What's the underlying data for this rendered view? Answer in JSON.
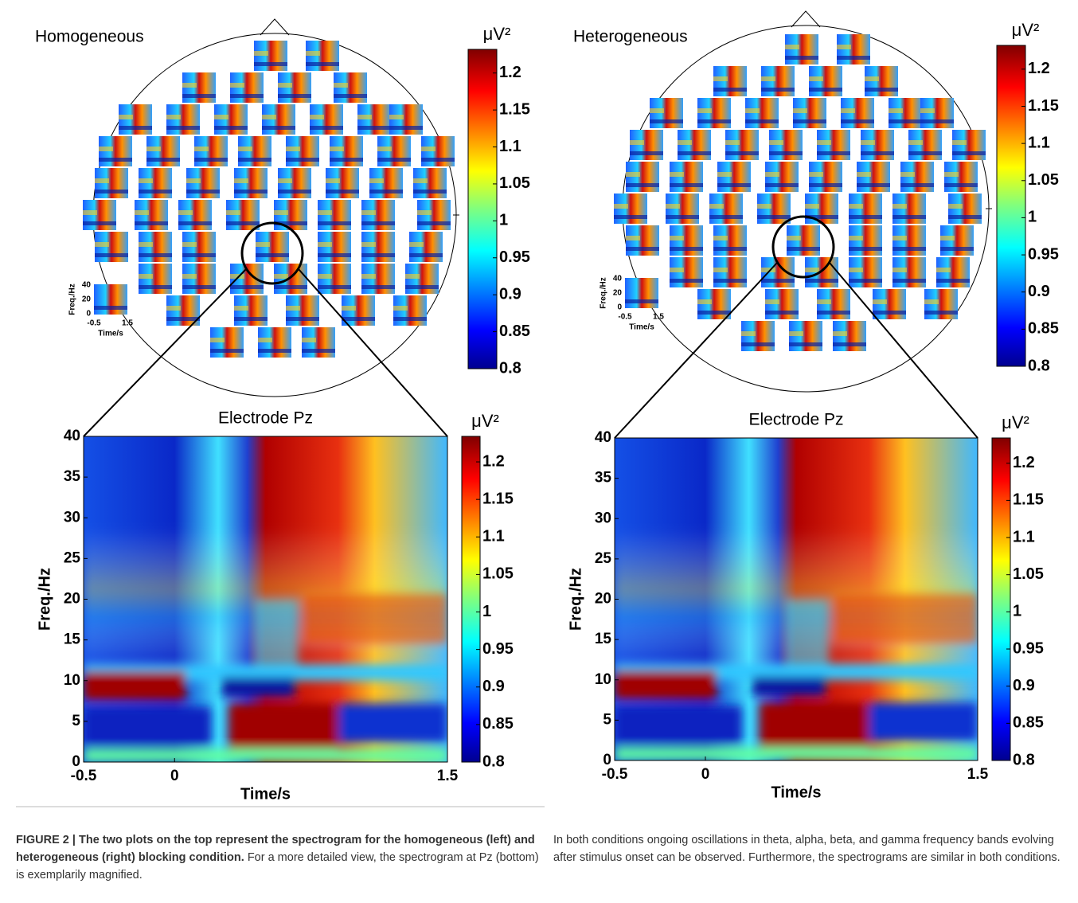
{
  "panels": [
    {
      "title": "Homogeneous",
      "colorbar": {
        "unit": "μV²",
        "clim": [
          0.8,
          1.232
        ],
        "ticks": [
          1.2,
          1.15,
          1.1,
          1.05,
          1,
          0.95,
          0.9,
          0.85,
          0.8
        ]
      },
      "mini_axis": {
        "ylabel": "Freq./Hz",
        "yticks": [
          40,
          20,
          0
        ],
        "xlabel": "Time/s",
        "xticks": [
          -0.5,
          1.5
        ]
      },
      "zoom": {
        "title": "Electrode Pz",
        "ylabel": "Freq./Hz",
        "xlabel": "Time/s",
        "ylim": [
          0,
          40
        ],
        "yticks": [
          40,
          35,
          30,
          25,
          20,
          15,
          10,
          5,
          0
        ],
        "xlim": [
          -0.5,
          1.5
        ],
        "xticks": [
          -0.5,
          0,
          1.5
        ],
        "colorbar": {
          "unit": "μV²",
          "clim": [
            0.8,
            1.234
          ],
          "ticks": [
            1.2,
            1.15,
            1.1,
            1.05,
            1,
            0.95,
            0.9,
            0.85,
            0.8
          ]
        }
      }
    },
    {
      "title": "Heterogeneous",
      "colorbar": {
        "unit": "μV²",
        "clim": [
          0.8,
          1.232
        ],
        "ticks": [
          1.2,
          1.15,
          1.1,
          1.05,
          1,
          0.95,
          0.9,
          0.85,
          0.8
        ]
      },
      "mini_axis": {
        "ylabel": "Freq./Hz",
        "yticks": [
          40,
          20,
          0
        ],
        "xlabel": "Time/s",
        "xticks": [
          -0.5,
          1.5
        ]
      },
      "zoom": {
        "title": "Electrode Pz",
        "ylabel": "Freq./Hz",
        "xlabel": "Time/s",
        "ylim": [
          0,
          40
        ],
        "yticks": [
          40,
          35,
          30,
          25,
          20,
          15,
          10,
          5,
          0
        ],
        "xlim": [
          -0.5,
          1.5
        ],
        "xticks": [
          -0.5,
          0,
          1.5
        ],
        "colorbar": {
          "unit": "μV²",
          "clim": [
            0.8,
            1.234
          ],
          "ticks": [
            1.2,
            1.15,
            1.1,
            1.05,
            1,
            0.95,
            0.9,
            0.85,
            0.8
          ]
        }
      }
    }
  ],
  "caption": {
    "label": "FIGURE 2 |",
    "bold": "The two plots on the top represent the spectrogram for the homogeneous (left) and heterogeneous (right) blocking condition.",
    "text": "For a more detailed view, the spectrogram at Pz (bottom) is exemplarily magnified.",
    "text2": "In both conditions ongoing oscillations in theta, alpha, beta, and gamma frequency bands evolving after stimulus onset can be observed. Furthermore, the spectrograms are similar in both conditions."
  }
}
